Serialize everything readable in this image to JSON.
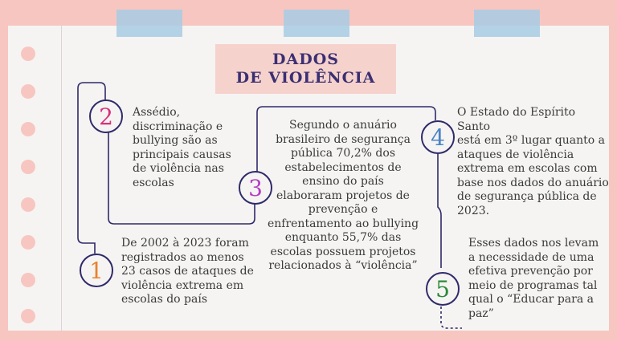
{
  "title": {
    "line1": "DADOS",
    "line2": "DE VIOLÊNCIA"
  },
  "steps": [
    {
      "number": "1",
      "color": "#e8822a",
      "text": "De 2002 à 2023 foram\nregistrados ao menos\n23 casos de ataques de\nviolência extrema em\nescolas do país"
    },
    {
      "number": "2",
      "color": "#d8307a",
      "text": "Assédio,\ndiscriminação e\nbullying são as\nprincipais causas\nde violência nas\nescolas"
    },
    {
      "number": "3",
      "color": "#b43cc4",
      "text": "Segundo o anuário\nbrasileiro de segurança\npública 70,2% dos\nestabelecimentos de\nensino do país\nelaboraram projetos de\nprevenção e\nenfrentamento ao bullying\nenquanto 55,7% das\nescolas possuem projetos\nrelacionados à “violência”"
    },
    {
      "number": "4",
      "color": "#4a84c4",
      "text": "O Estado do Espírito Santo\nestá em 3º lugar quanto a\nataques de violência\nextrema em escolas com\nbase nos dados do anuário\nde segurança pública de\n2023."
    },
    {
      "number": "5",
      "color": "#2a8a3a",
      "text": "Esses dados nos levam\na necessidade de uma\nefetiva prevenção por\nmeio de programas tal\nqual o “Educar para a\npaz”"
    }
  ]
}
